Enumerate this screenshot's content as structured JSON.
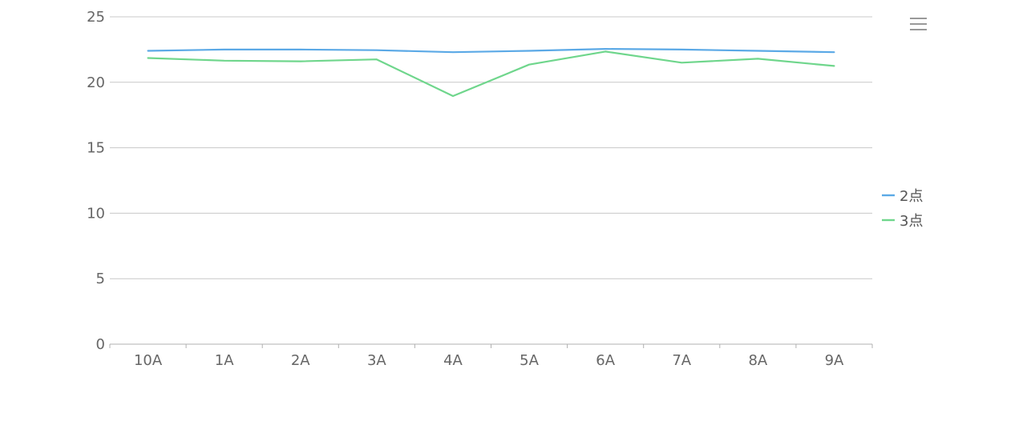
{
  "chart_data": {
    "type": "line",
    "categories": [
      "10A",
      "1A",
      "2A",
      "3A",
      "4A",
      "5A",
      "6A",
      "7A",
      "8A",
      "9A"
    ],
    "series": [
      {
        "name": "2点",
        "color": "#5ba9e6",
        "values": [
          22.4,
          22.5,
          22.5,
          22.45,
          22.3,
          22.4,
          22.55,
          22.5,
          22.4,
          22.3
        ]
      },
      {
        "name": "3点",
        "color": "#6fd68c",
        "values": [
          21.85,
          21.65,
          21.6,
          21.75,
          18.95,
          21.35,
          22.35,
          21.5,
          21.8,
          21.25
        ]
      }
    ],
    "yticks": [
      0,
      5,
      10,
      15,
      20,
      25
    ],
    "ylim": [
      0,
      25
    ],
    "grid": true,
    "legend": "right",
    "menu_icon": "hamburger-menu-icon"
  }
}
